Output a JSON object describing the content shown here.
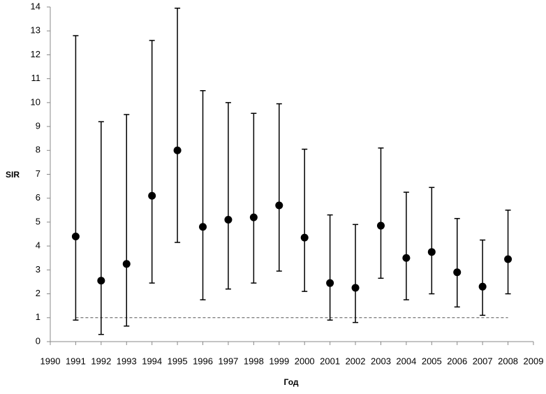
{
  "chart_data": {
    "type": "errorbar",
    "x_label": "Год",
    "y_label": "SIR",
    "x": [
      1991,
      1992,
      1993,
      1994,
      1995,
      1996,
      1997,
      1998,
      1999,
      2000,
      2001,
      2002,
      2003,
      2004,
      2005,
      2006,
      2007,
      2008
    ],
    "values": [
      4.4,
      2.55,
      3.25,
      6.1,
      8.0,
      4.8,
      5.1,
      5.2,
      5.7,
      4.35,
      2.45,
      2.25,
      4.85,
      3.5,
      3.75,
      2.9,
      2.3,
      3.45
    ],
    "lower": [
      0.9,
      0.3,
      0.65,
      2.45,
      4.15,
      1.75,
      2.2,
      2.45,
      2.95,
      2.1,
      0.9,
      0.8,
      2.65,
      1.75,
      2.0,
      1.45,
      1.1,
      2.0
    ],
    "upper": [
      12.8,
      9.2,
      9.5,
      12.6,
      13.95,
      10.5,
      10.0,
      9.55,
      9.95,
      8.05,
      5.3,
      4.9,
      8.1,
      6.25,
      6.45,
      5.15,
      4.25,
      5.5
    ],
    "color": "#000000",
    "reference_line": 1,
    "xlim": [
      1990,
      2009
    ],
    "xticks": [
      1990,
      1991,
      1992,
      1993,
      1994,
      1995,
      1996,
      1997,
      1998,
      1999,
      2000,
      2001,
      2002,
      2003,
      2004,
      2005,
      2006,
      2007,
      2008,
      2009
    ],
    "ylim": [
      0,
      14
    ],
    "yticks": [
      0,
      1,
      2,
      3,
      4,
      5,
      6,
      7,
      8,
      9,
      10,
      11,
      12,
      13,
      14
    ],
    "grid": false
  }
}
